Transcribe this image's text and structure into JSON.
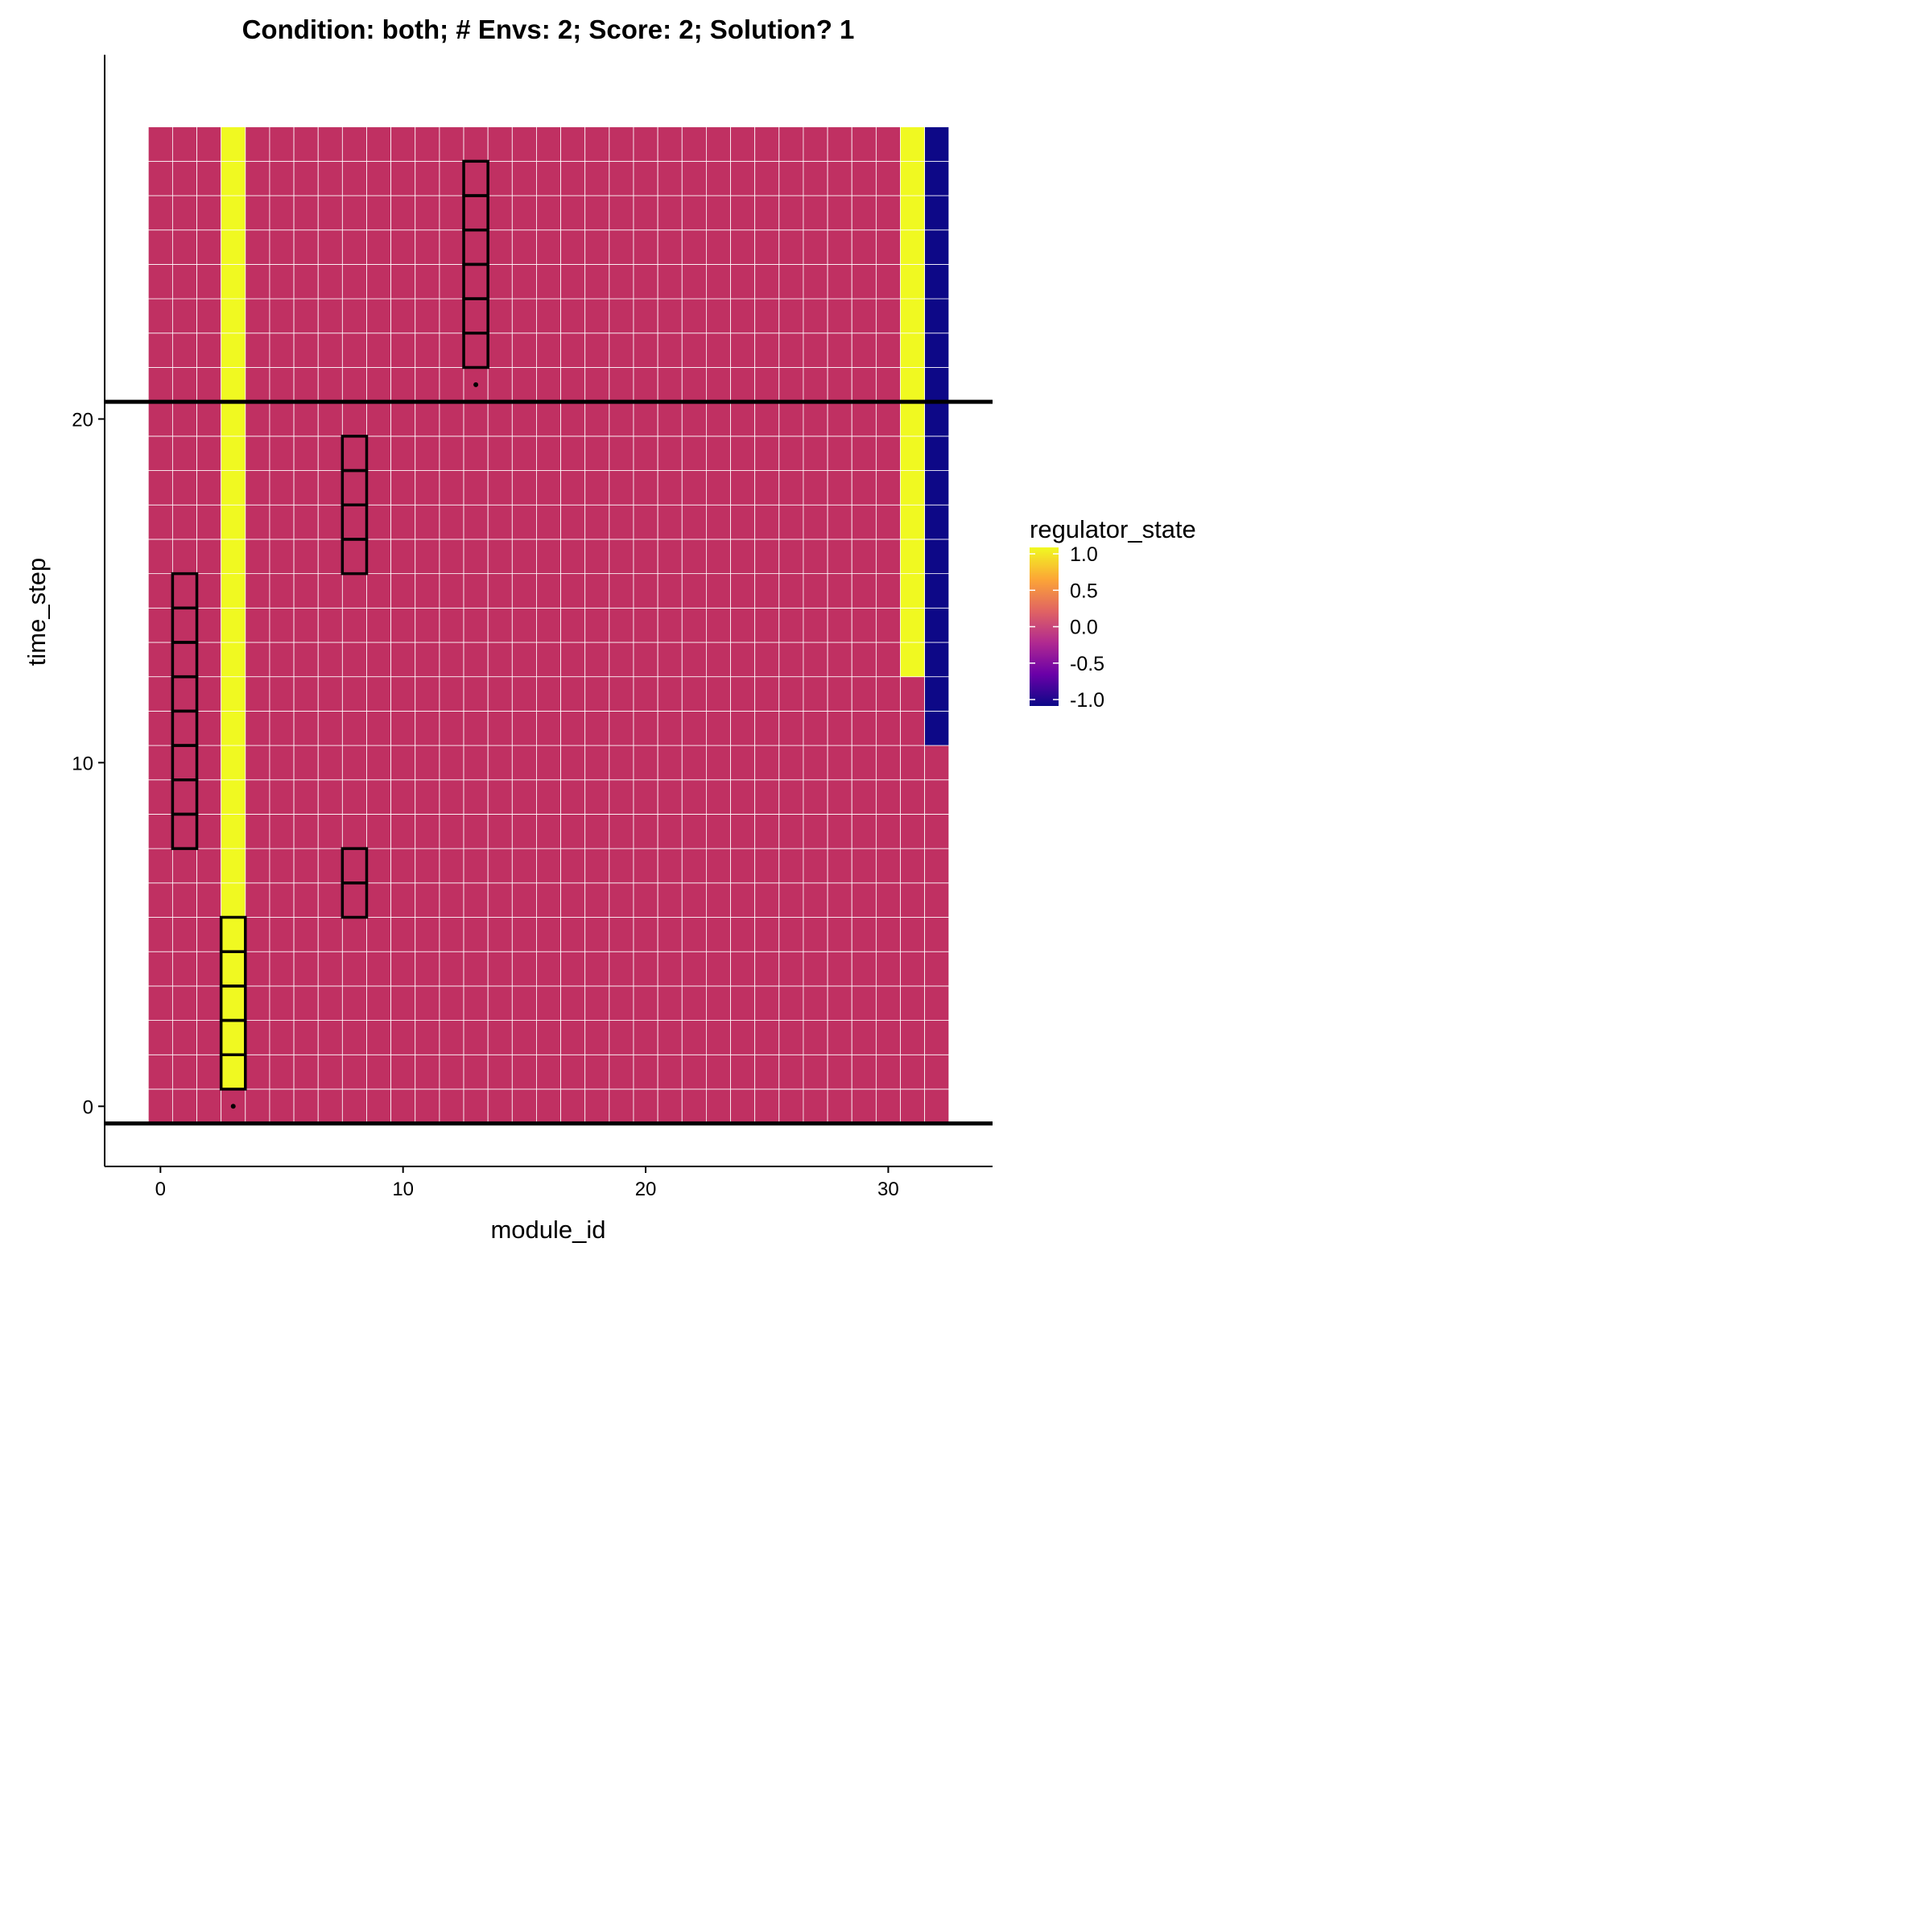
{
  "chart_data": {
    "type": "heatmap",
    "title": "Condition: both; # Envs: 2; Score: 2; Solution? 1",
    "xlabel": "module_id",
    "ylabel": "time_step",
    "x_range": [
      0,
      32
    ],
    "y_range": [
      0,
      28
    ],
    "xlim": [
      -2.3,
      34.3
    ],
    "ylim": [
      -1.75,
      30.6
    ],
    "x_ticks": [
      0,
      10,
      20,
      30
    ],
    "y_ticks": [
      0,
      10,
      20
    ],
    "default_value": 0,
    "cells": [
      {
        "x": 3,
        "y_from": 1,
        "y_to": 28,
        "value": 1
      },
      {
        "x": 31,
        "y_from": 13,
        "y_to": 28,
        "value": 1
      },
      {
        "x": 32,
        "y_from": 11,
        "y_to": 28,
        "value": -1
      }
    ],
    "highlighted_cells": [
      {
        "x": 3,
        "y": [
          1,
          2,
          3,
          4,
          5
        ]
      },
      {
        "x": 1,
        "y": [
          8,
          9,
          10,
          11,
          12,
          13,
          14,
          15
        ]
      },
      {
        "x": 8,
        "y": [
          6,
          7,
          16,
          17,
          18,
          19
        ]
      },
      {
        "x": 13,
        "y": [
          22,
          23,
          24,
          25,
          26,
          27
        ]
      }
    ],
    "markers": [
      {
        "x": 3,
        "y": 0
      },
      {
        "x": 13,
        "y": 21
      }
    ],
    "hlines": [
      -0.5,
      20.5
    ],
    "legend": {
      "title": "regulator_state",
      "placement": "right",
      "ticks": [
        "1.0",
        "0.5",
        "0.0",
        "-0.5",
        "-1.0"
      ],
      "range": [
        -1,
        1
      ]
    },
    "colors": {
      "value_pos": "#f0f921",
      "value_zero": "#c03062",
      "value_neg": "#0d0887",
      "gradient": [
        "#f0f921",
        "#fca636",
        "#e16462",
        "#b12a90",
        "#6a00a8",
        "#0d0887"
      ],
      "grid_line": "#ffffff",
      "outline": "#000000"
    }
  }
}
